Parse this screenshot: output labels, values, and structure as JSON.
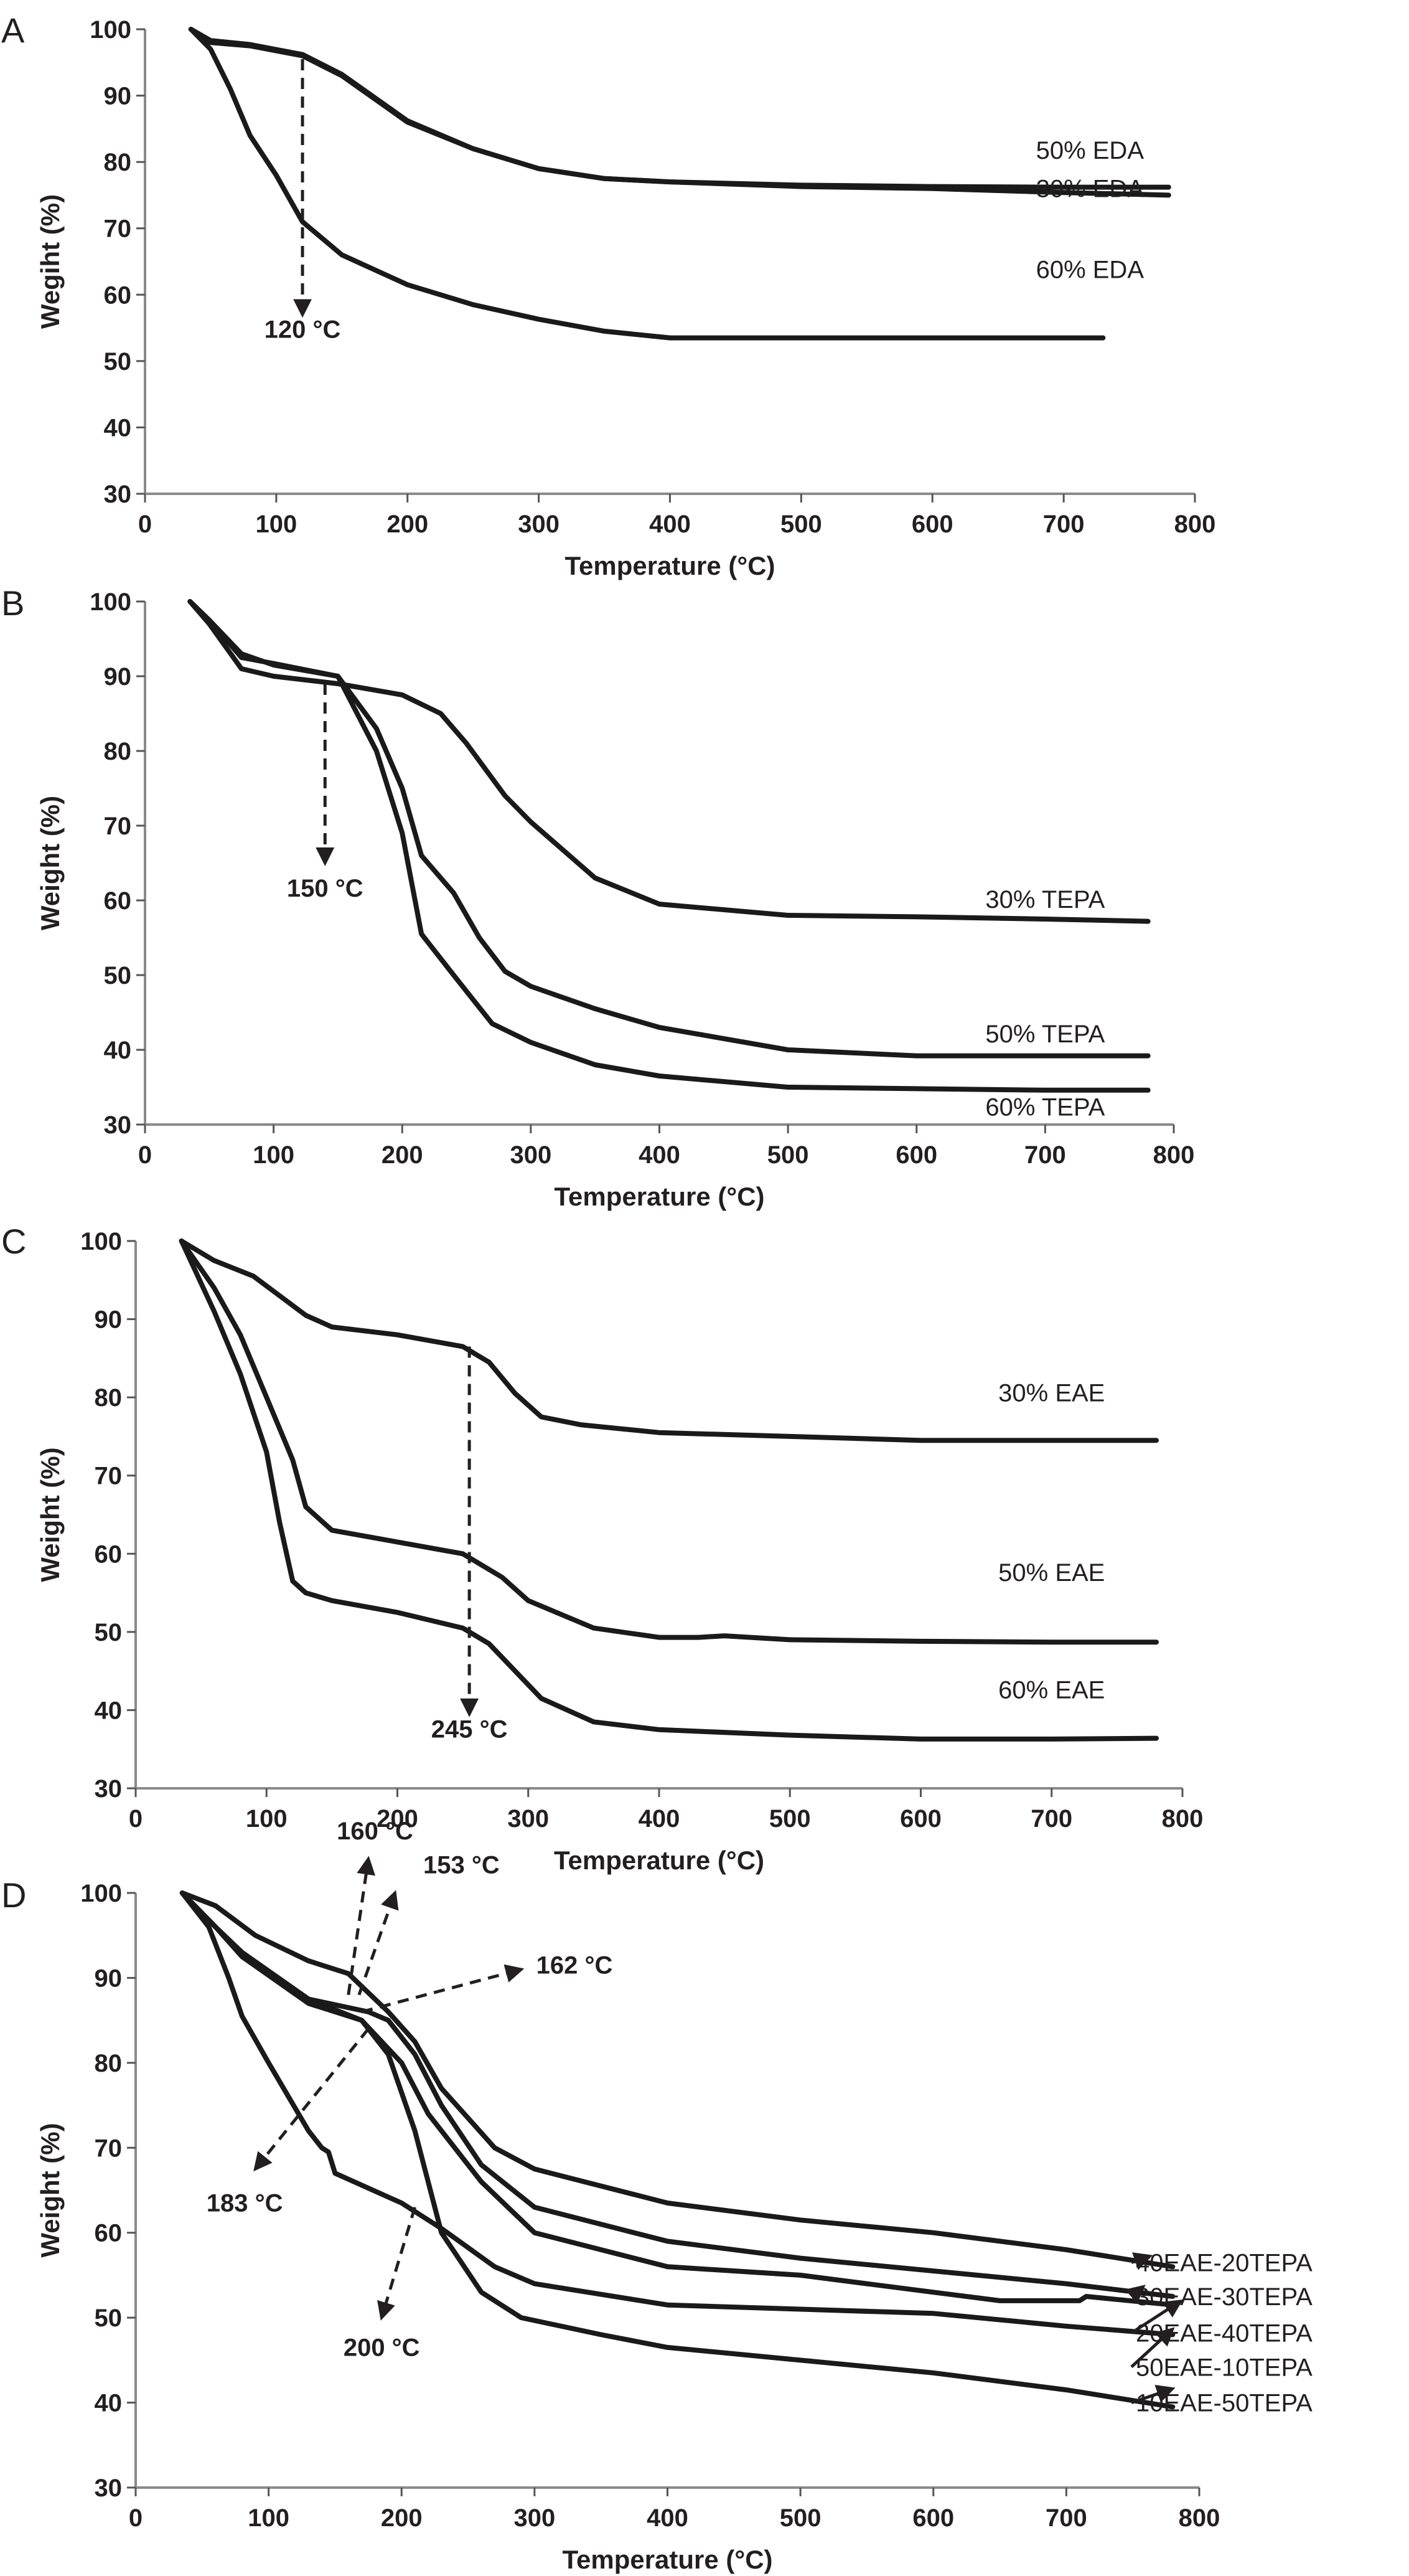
{
  "figure": {
    "description": "TGA curves of amine-impregnated sorbents"
  },
  "chart_data": [
    {
      "panel": "A",
      "type": "line",
      "title": "",
      "xlabel": "Temperature (°C)",
      "ylabel": "Wegiht (%)",
      "xlim": [
        0,
        800
      ],
      "ylim": [
        30,
        100
      ],
      "xticks": [
        0,
        100,
        200,
        300,
        400,
        500,
        600,
        700,
        800
      ],
      "yticks": [
        30,
        40,
        50,
        60,
        70,
        80,
        90,
        100
      ],
      "grid": false,
      "series": [
        {
          "name": "50% EDA",
          "x": [
            35,
            50,
            80,
            120,
            150,
            200,
            250,
            300,
            350,
            400,
            500,
            600,
            700,
            780
          ],
          "y": [
            100,
            98,
            97.5,
            96,
            93,
            86,
            82,
            79,
            77.5,
            77,
            76.5,
            76.3,
            76.2,
            76.2
          ]
        },
        {
          "name": "30% EDA",
          "x": [
            35,
            50,
            80,
            120,
            150,
            200,
            250,
            300,
            350,
            400,
            500,
            600,
            700,
            780
          ],
          "y": [
            100,
            98.3,
            97.7,
            96.2,
            93.2,
            86.2,
            82,
            79,
            77.5,
            77,
            76.3,
            76,
            75.4,
            75
          ]
        },
        {
          "name": "60% EDA",
          "x": [
            35,
            50,
            65,
            80,
            100,
            120,
            150,
            200,
            250,
            300,
            350,
            400,
            500,
            600,
            730
          ],
          "y": [
            100,
            97,
            91,
            84,
            78,
            71,
            66,
            61.5,
            58.5,
            56.3,
            54.5,
            53.5,
            53.5,
            53.5,
            53.5
          ]
        }
      ],
      "annotations": [
        {
          "text": "120 °C",
          "x": 120,
          "type": "dashed-arrow-down"
        }
      ],
      "series_labels": [
        "50% EDA",
        "30% EDA",
        "60% EDA"
      ]
    },
    {
      "panel": "B",
      "type": "line",
      "title": "",
      "xlabel": "Temperature (°C)",
      "ylabel": "Weight (%)",
      "xlim": [
        0,
        800
      ],
      "ylim": [
        30,
        100
      ],
      "xticks": [
        0,
        100,
        200,
        300,
        400,
        500,
        600,
        700,
        800
      ],
      "yticks": [
        30,
        40,
        50,
        60,
        70,
        80,
        90,
        100
      ],
      "grid": false,
      "series": [
        {
          "name": "30% TEPA",
          "x": [
            35,
            50,
            75,
            100,
            150,
            200,
            230,
            250,
            280,
            300,
            350,
            400,
            500,
            600,
            700,
            780
          ],
          "y": [
            100,
            97,
            91,
            90,
            89,
            87.5,
            85,
            81,
            74,
            70.5,
            63,
            59.5,
            58,
            57.8,
            57.5,
            57.2
          ]
        },
        {
          "name": "50% TEPA",
          "x": [
            35,
            50,
            75,
            100,
            150,
            180,
            200,
            215,
            240,
            260,
            280,
            300,
            350,
            400,
            500,
            600,
            700,
            780
          ],
          "y": [
            100,
            97.5,
            93,
            91.5,
            90,
            83,
            75,
            66,
            61,
            55,
            50.5,
            48.5,
            45.5,
            43,
            40,
            39.2,
            39.2,
            39.2
          ]
        },
        {
          "name": "60% TEPA",
          "x": [
            35,
            50,
            75,
            100,
            150,
            180,
            200,
            215,
            240,
            270,
            300,
            350,
            400,
            500,
            600,
            700,
            780
          ],
          "y": [
            100,
            97.5,
            92.5,
            91.7,
            90,
            80,
            69,
            55.5,
            50,
            43.5,
            41,
            38,
            36.5,
            35,
            34.8,
            34.6,
            34.6
          ]
        }
      ],
      "annotations": [
        {
          "text": "150 °C",
          "x": 140,
          "type": "dashed-arrow-down"
        }
      ],
      "series_labels": [
        "30% TEPA",
        "50% TEPA",
        "60% TEPA"
      ]
    },
    {
      "panel": "C",
      "type": "line",
      "title": "",
      "xlabel": "Temperature (°C)",
      "ylabel": "Weight (%)",
      "xlim": [
        0,
        800
      ],
      "ylim": [
        30,
        100
      ],
      "xticks": [
        0,
        100,
        200,
        300,
        400,
        500,
        600,
        700,
        800
      ],
      "yticks": [
        30,
        40,
        50,
        60,
        70,
        80,
        90,
        100
      ],
      "grid": false,
      "series": [
        {
          "name": "30% EAE",
          "x": [
            35,
            60,
            90,
            110,
            130,
            150,
            200,
            250,
            270,
            290,
            310,
            340,
            400,
            500,
            600,
            700,
            780
          ],
          "y": [
            100,
            97.5,
            95.5,
            93,
            90.5,
            89,
            88,
            86.5,
            84.5,
            80.5,
            77.5,
            76.5,
            75.5,
            75,
            74.5,
            74.5,
            74.5
          ]
        },
        {
          "name": "50% EAE",
          "x": [
            35,
            60,
            80,
            100,
            120,
            130,
            150,
            200,
            250,
            280,
            300,
            350,
            400,
            430,
            450,
            500,
            600,
            700,
            780
          ],
          "y": [
            100,
            94,
            88,
            80,
            72,
            66,
            63,
            61.5,
            60,
            57,
            54,
            50.5,
            49.3,
            49.3,
            49.5,
            49,
            48.8,
            48.7,
            48.7
          ]
        },
        {
          "name": "60% EAE",
          "x": [
            35,
            60,
            80,
            100,
            110,
            120,
            130,
            150,
            200,
            250,
            270,
            290,
            310,
            350,
            400,
            500,
            600,
            700,
            780
          ],
          "y": [
            100,
            91,
            83,
            73,
            64,
            56.5,
            55,
            54,
            52.5,
            50.5,
            48.5,
            45,
            41.5,
            38.5,
            37.5,
            36.8,
            36.3,
            36.3,
            36.4
          ]
        }
      ],
      "annotations": [
        {
          "text": "245 °C",
          "x": 255,
          "type": "dashed-arrow-down"
        }
      ],
      "series_labels": [
        "30% EAE",
        "50% EAE",
        "60% EAE"
      ]
    },
    {
      "panel": "D",
      "type": "line",
      "title": "",
      "xlabel": "Temperature (°C)",
      "ylabel": "Weight (%)",
      "xlim": [
        0,
        800
      ],
      "ylim": [
        30,
        100
      ],
      "xticks": [
        0,
        100,
        200,
        300,
        400,
        500,
        600,
        700,
        800
      ],
      "yticks": [
        30,
        40,
        50,
        60,
        70,
        80,
        90,
        100
      ],
      "grid": false,
      "series": [
        {
          "name": "40EAE-20TEPA",
          "x": [
            35,
            60,
            90,
            130,
            160,
            190,
            210,
            230,
            270,
            300,
            400,
            500,
            600,
            700,
            780
          ],
          "y": [
            100,
            98.5,
            95,
            92,
            90.5,
            86,
            82.5,
            77,
            70,
            67.5,
            63.5,
            61.5,
            60,
            58,
            56
          ]
        },
        {
          "name": "30EAE-30TEPA",
          "x": [
            35,
            60,
            80,
            130,
            175,
            190,
            210,
            230,
            260,
            300,
            400,
            500,
            600,
            700,
            780
          ],
          "y": [
            100,
            96,
            93,
            87.5,
            86,
            85,
            81,
            75,
            68,
            63,
            59,
            57,
            55.5,
            54,
            52.5
          ]
        },
        {
          "name": "20EAE-40TEPA",
          "x": [
            35,
            60,
            80,
            130,
            170,
            200,
            220,
            260,
            300,
            400,
            500,
            550,
            650,
            710,
            715,
            780
          ],
          "y": [
            100,
            96,
            93,
            87.5,
            85,
            80,
            74,
            66,
            60,
            56,
            55,
            54,
            52,
            52,
            52.5,
            51.5
          ]
        },
        {
          "name": "50EAE-10TEPA",
          "x": [
            35,
            55,
            70,
            80,
            100,
            130,
            140,
            145,
            150,
            200,
            230,
            270,
            300,
            400,
            500,
            600,
            700,
            780
          ],
          "y": [
            100,
            96,
            90,
            85.5,
            80,
            72,
            70,
            69.5,
            67,
            63.5,
            60.5,
            56,
            54,
            51.5,
            51,
            50.5,
            49,
            48
          ]
        },
        {
          "name": "10EAE-50TEPA",
          "x": [
            35,
            60,
            80,
            130,
            170,
            190,
            210,
            230,
            260,
            290,
            350,
            400,
            500,
            600,
            700,
            780
          ],
          "y": [
            100,
            96,
            92.5,
            87,
            85,
            81,
            72,
            60,
            53,
            50,
            48,
            46.5,
            45,
            43.5,
            41.5,
            39.5
          ]
        }
      ],
      "annotations": [
        {
          "text": "160 °C",
          "type": "dashed-arrow"
        },
        {
          "text": "153 °C",
          "type": "dashed-arrow"
        },
        {
          "text": "162 °C",
          "type": "dashed-arrow"
        },
        {
          "text": "183 °C",
          "type": "dashed-arrow"
        },
        {
          "text": "200 °C",
          "type": "dashed-arrow"
        }
      ],
      "series_labels": [
        "40EAE-20TEPA",
        "30EAE-30TEPA",
        "20EAE-40TEPA",
        "50EAE-10TEPA",
        "10EAE-50TEPA"
      ]
    }
  ]
}
